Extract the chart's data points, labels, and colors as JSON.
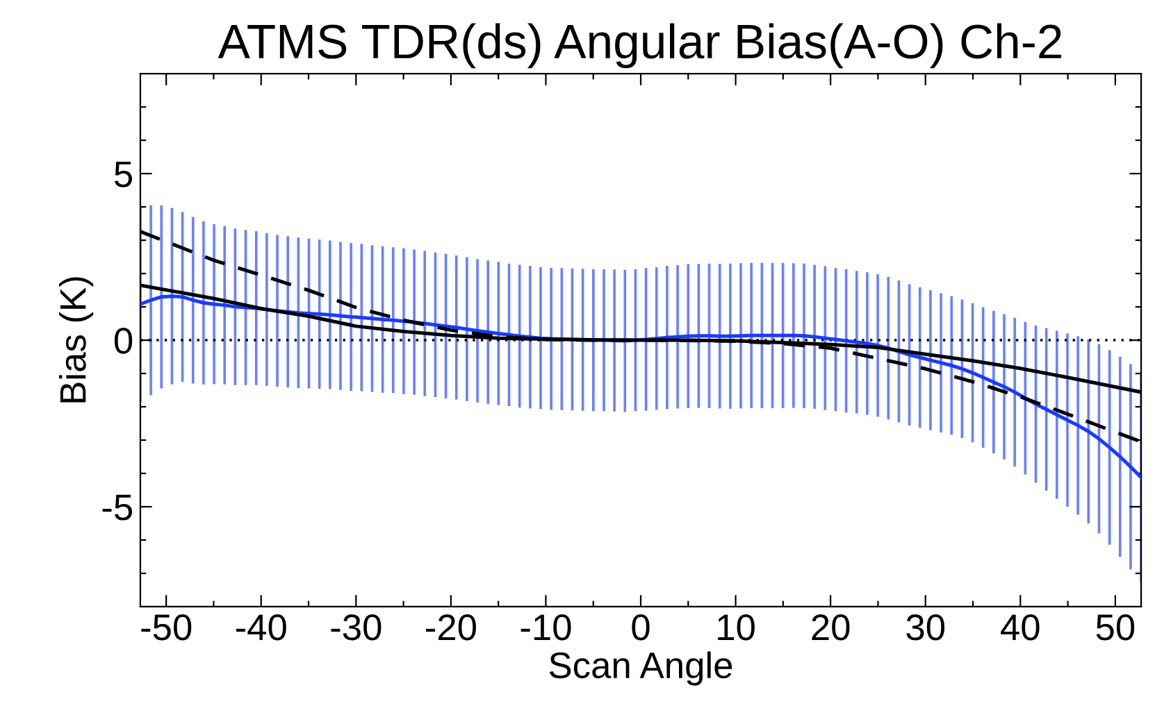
{
  "chart_data": {
    "type": "line",
    "title": "ATMS TDR(ds) Angular Bias(A-O) Ch-2",
    "xlabel": "Scan Angle",
    "ylabel": "Bias (K)",
    "xlim": [
      -52.725,
      52.725
    ],
    "ylim": [
      -8,
      8
    ],
    "xticks": [
      -50,
      {
        "value": -45,
        "label": null
      },
      -40,
      {
        "value": -35,
        "label": null
      },
      -30,
      {
        "value": -25,
        "label": null
      },
      -20,
      {
        "value": -15,
        "label": null
      },
      -10,
      {
        "value": -5,
        "label": null
      },
      0,
      {
        "value": 5,
        "label": null
      },
      10,
      {
        "value": 15,
        "label": null
      },
      20,
      {
        "value": 25,
        "label": null
      },
      30,
      {
        "value": 35,
        "label": null
      },
      40,
      {
        "value": 45,
        "label": null
      },
      50
    ],
    "yticks": [
      {
        "value": -7,
        "label": null
      },
      {
        "value": -6,
        "label": null
      },
      -5,
      {
        "value": -4,
        "label": null
      },
      {
        "value": -3,
        "label": null
      },
      {
        "value": -2,
        "label": null
      },
      {
        "value": -1,
        "label": null
      },
      0,
      {
        "value": 1,
        "label": null
      },
      {
        "value": 2,
        "label": null
      },
      {
        "value": 3,
        "label": null
      },
      {
        "value": 4,
        "label": null
      },
      5,
      {
        "value": 6,
        "label": null
      },
      {
        "value": 7,
        "label": null
      }
    ],
    "grid": false,
    "ref_lines": [
      {
        "axis": "y",
        "value": 0,
        "color": "#000000",
        "line_style": "dotted"
      }
    ],
    "series": [
      {
        "color": "#1a3cff",
        "line_style": "solid",
        "x": [
          -52.725,
          -51.615,
          -50.505,
          -49.395,
          -48.285,
          -47.175,
          -46.065,
          -44.955,
          -43.845,
          -42.735,
          -41.625,
          -40.515,
          -39.405,
          -38.295,
          -37.185,
          -36.075,
          -34.965,
          -33.855,
          -32.745,
          -31.635,
          -30.525,
          -29.415,
          -28.305,
          -27.195,
          -26.085,
          -24.975,
          -23.865,
          -22.755,
          -21.645,
          -20.535,
          -19.425,
          -18.315,
          -17.205,
          -16.095,
          -14.985,
          -13.875,
          -12.765,
          -11.655,
          -10.545,
          -9.435,
          -8.325,
          -7.215,
          -6.105,
          -4.995,
          -3.885,
          -2.775,
          -1.665,
          -0.555,
          0.555,
          1.665,
          2.775,
          3.885,
          4.995,
          6.105,
          7.215,
          8.325,
          9.435,
          10.545,
          11.655,
          12.765,
          13.875,
          14.985,
          16.095,
          17.205,
          18.315,
          19.425,
          20.535,
          21.645,
          22.755,
          23.865,
          24.975,
          26.085,
          27.195,
          28.305,
          29.415,
          30.525,
          31.635,
          32.745,
          33.855,
          34.965,
          36.075,
          37.185,
          38.295,
          39.405,
          40.515,
          41.625,
          42.735,
          43.845,
          44.955,
          46.065,
          47.175,
          48.285,
          49.395,
          50.505,
          51.615,
          52.725
        ],
        "values": [
          1.08,
          1.2,
          1.3,
          1.32,
          1.3,
          1.2,
          1.12,
          1.08,
          1.05,
          1.0,
          0.98,
          0.96,
          0.92,
          0.88,
          0.85,
          0.82,
          0.8,
          0.78,
          0.76,
          0.73,
          0.7,
          0.68,
          0.65,
          0.62,
          0.6,
          0.57,
          0.54,
          0.5,
          0.46,
          0.42,
          0.38,
          0.33,
          0.28,
          0.24,
          0.2,
          0.16,
          0.12,
          0.09,
          0.06,
          0.04,
          0.03,
          0.02,
          0.01,
          0.0,
          0.0,
          -0.01,
          -0.02,
          0.0,
          0.02,
          0.05,
          0.08,
          0.1,
          0.12,
          0.13,
          0.13,
          0.12,
          0.12,
          0.13,
          0.14,
          0.14,
          0.14,
          0.14,
          0.14,
          0.13,
          0.1,
          0.06,
          0.02,
          -0.02,
          -0.06,
          -0.1,
          -0.16,
          -0.24,
          -0.34,
          -0.44,
          -0.52,
          -0.6,
          -0.68,
          -0.76,
          -0.86,
          -0.98,
          -1.12,
          -1.26,
          -1.4,
          -1.56,
          -1.74,
          -1.92,
          -2.08,
          -2.24,
          -2.4,
          -2.56,
          -2.74,
          -2.96,
          -3.22,
          -3.5,
          -3.8,
          -4.12
        ],
        "errors": [
          2.95,
          2.85,
          2.75,
          2.65,
          2.55,
          2.5,
          2.45,
          2.4,
          2.38,
          2.35,
          2.33,
          2.31,
          2.29,
          2.28,
          2.27,
          2.26,
          2.25,
          2.24,
          2.23,
          2.22,
          2.22,
          2.21,
          2.2,
          2.2,
          2.19,
          2.19,
          2.18,
          2.18,
          2.17,
          2.17,
          2.16,
          2.16,
          2.15,
          2.15,
          2.15,
          2.14,
          2.14,
          2.14,
          2.13,
          2.13,
          2.13,
          2.13,
          2.13,
          2.13,
          2.13,
          2.13,
          2.13,
          2.13,
          2.14,
          2.14,
          2.15,
          2.15,
          2.16,
          2.16,
          2.17,
          2.17,
          2.18,
          2.18,
          2.18,
          2.18,
          2.18,
          2.18,
          2.17,
          2.17,
          2.16,
          2.16,
          2.15,
          2.15,
          2.14,
          2.14,
          2.14,
          2.14,
          2.13,
          2.12,
          2.11,
          2.1,
          2.09,
          2.08,
          2.08,
          2.09,
          2.11,
          2.14,
          2.18,
          2.23,
          2.29,
          2.36,
          2.44,
          2.52,
          2.6,
          2.68,
          2.76,
          2.84,
          2.92,
          3.0,
          3.08,
          3.16
        ]
      },
      {
        "color": "#000000",
        "line_style": "solid",
        "x": [
          -52.725,
          -45,
          -40,
          -35,
          -30,
          -25,
          -20,
          -15,
          -10,
          -5,
          0,
          5,
          10,
          15,
          20,
          25,
          30,
          35,
          40,
          45,
          52.725
        ],
        "values": [
          1.65,
          1.25,
          0.95,
          0.72,
          0.42,
          0.26,
          0.14,
          0.06,
          0.03,
          0.01,
          0,
          0,
          -0.02,
          -0.07,
          -0.13,
          -0.22,
          -0.42,
          -0.62,
          -0.85,
          -1.12,
          -1.56
        ]
      },
      {
        "color": "#000000",
        "line_style": "dashed",
        "x": [
          -52.725,
          -45,
          -40,
          -35,
          -30,
          -25,
          -20,
          -15,
          -10,
          -5,
          0,
          5,
          10,
          15,
          20,
          25,
          30,
          35,
          40,
          45,
          52.725
        ],
        "values": [
          3.26,
          2.4,
          1.95,
          1.5,
          0.98,
          0.6,
          0.3,
          0.1,
          0.02,
          0,
          0,
          -0.01,
          -0.03,
          -0.1,
          -0.24,
          -0.55,
          -0.86,
          -1.25,
          -1.7,
          -2.22,
          -3.05
        ]
      }
    ]
  }
}
